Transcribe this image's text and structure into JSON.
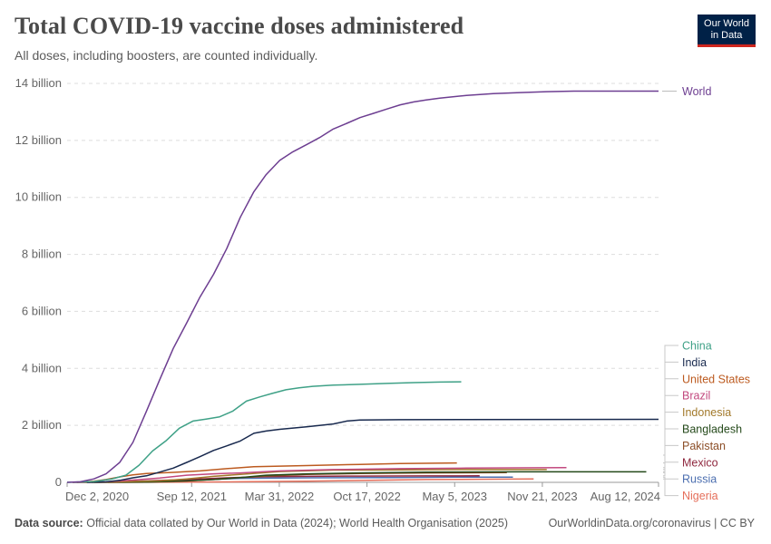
{
  "header": {
    "title": "Total COVID-19 vaccine doses administered",
    "subtitle": "All doses, including boosters, are counted individually.",
    "logo_line1": "Our World",
    "logo_line2": "in Data"
  },
  "footer": {
    "source_label": "Data source:",
    "source_text": "Official data collated by Our World in Data (2024); World Health Organisation (2025)",
    "link_text": "OurWorldinData.org/coronavirus",
    "separator": "|",
    "license": "CC BY"
  },
  "chart_data": {
    "type": "line",
    "title": "Total COVID-19 vaccine doses administered",
    "subtitle": "All doses, including boosters, are counted individually.",
    "y_unit": "billion",
    "ylim": [
      0,
      14
    ],
    "y_ticks": [
      {
        "value": 0,
        "label": "0"
      },
      {
        "value": 2,
        "label": "2 billion"
      },
      {
        "value": 4,
        "label": "4 billion"
      },
      {
        "value": 6,
        "label": "6 billion"
      },
      {
        "value": 8,
        "label": "8 billion"
      },
      {
        "value": 10,
        "label": "10 billion"
      },
      {
        "value": 12,
        "label": "12 billion"
      },
      {
        "value": 14,
        "label": "14 billion"
      }
    ],
    "xlim": [
      "2020-12-02",
      "2024-08-12"
    ],
    "x_ticks": [
      {
        "date": "2020-12-02",
        "label": "Dec 2, 2020"
      },
      {
        "date": "2021-09-12",
        "label": "Sep 12, 2021"
      },
      {
        "date": "2022-03-31",
        "label": "Mar 31, 2022"
      },
      {
        "date": "2022-10-17",
        "label": "Oct 17, 2022"
      },
      {
        "date": "2023-05-05",
        "label": "May 5, 2023"
      },
      {
        "date": "2023-11-21",
        "label": "Nov 21, 2023"
      },
      {
        "date": "2024-08-12",
        "label": "Aug 12, 2024"
      }
    ],
    "grid": "horizontal dashed",
    "legend": "right, line-end labels",
    "series": [
      {
        "name": "World",
        "color": "#6d3e91",
        "points": [
          [
            "2020-12-02",
            0
          ],
          [
            "2021-01-01",
            0.02
          ],
          [
            "2021-02-01",
            0.12
          ],
          [
            "2021-03-01",
            0.3
          ],
          [
            "2021-04-01",
            0.7
          ],
          [
            "2021-05-01",
            1.4
          ],
          [
            "2021-06-01",
            2.5
          ],
          [
            "2021-07-01",
            3.6
          ],
          [
            "2021-08-01",
            4.7
          ],
          [
            "2021-09-01",
            5.6
          ],
          [
            "2021-10-01",
            6.5
          ],
          [
            "2021-11-01",
            7.3
          ],
          [
            "2021-12-01",
            8.2
          ],
          [
            "2022-01-01",
            9.3
          ],
          [
            "2022-02-01",
            10.2
          ],
          [
            "2022-03-01",
            10.8
          ],
          [
            "2022-04-01",
            11.3
          ],
          [
            "2022-05-01",
            11.6
          ],
          [
            "2022-06-01",
            11.85
          ],
          [
            "2022-07-01",
            12.1
          ],
          [
            "2022-08-01",
            12.4
          ],
          [
            "2022-09-01",
            12.6
          ],
          [
            "2022-10-01",
            12.8
          ],
          [
            "2022-11-01",
            12.95
          ],
          [
            "2022-12-01",
            13.1
          ],
          [
            "2023-01-01",
            13.25
          ],
          [
            "2023-02-01",
            13.35
          ],
          [
            "2023-03-01",
            13.42
          ],
          [
            "2023-04-01",
            13.48
          ],
          [
            "2023-05-01",
            13.53
          ],
          [
            "2023-06-01",
            13.58
          ],
          [
            "2023-08-01",
            13.64
          ],
          [
            "2023-10-01",
            13.68
          ],
          [
            "2023-12-01",
            13.71
          ],
          [
            "2024-02-01",
            13.73
          ],
          [
            "2024-08-12",
            13.73
          ]
        ]
      },
      {
        "name": "China",
        "color": "#3fa187",
        "points": [
          [
            "2020-12-02",
            0
          ],
          [
            "2021-02-01",
            0.03
          ],
          [
            "2021-03-15",
            0.12
          ],
          [
            "2021-04-15",
            0.25
          ],
          [
            "2021-05-15",
            0.6
          ],
          [
            "2021-06-15",
            1.1
          ],
          [
            "2021-07-15",
            1.45
          ],
          [
            "2021-08-15",
            1.9
          ],
          [
            "2021-09-15",
            2.15
          ],
          [
            "2021-10-15",
            2.22
          ],
          [
            "2021-11-15",
            2.3
          ],
          [
            "2021-12-15",
            2.5
          ],
          [
            "2022-01-15",
            2.85
          ],
          [
            "2022-02-15",
            3.0
          ],
          [
            "2022-03-15",
            3.12
          ],
          [
            "2022-04-15",
            3.25
          ],
          [
            "2022-05-15",
            3.32
          ],
          [
            "2022-06-15",
            3.37
          ],
          [
            "2022-08-01",
            3.41
          ],
          [
            "2022-10-01",
            3.44
          ],
          [
            "2022-12-01",
            3.47
          ],
          [
            "2023-02-01",
            3.5
          ],
          [
            "2023-04-01",
            3.52
          ],
          [
            "2023-05-20",
            3.53
          ]
        ]
      },
      {
        "name": "India",
        "color": "#18294e",
        "points": [
          [
            "2021-01-16",
            0
          ],
          [
            "2021-03-01",
            0.02
          ],
          [
            "2021-04-01",
            0.07
          ],
          [
            "2021-05-01",
            0.16
          ],
          [
            "2021-06-01",
            0.23
          ],
          [
            "2021-07-01",
            0.36
          ],
          [
            "2021-08-01",
            0.5
          ],
          [
            "2021-09-01",
            0.7
          ],
          [
            "2021-10-01",
            0.9
          ],
          [
            "2021-11-01",
            1.12
          ],
          [
            "2021-12-01",
            1.28
          ],
          [
            "2022-01-01",
            1.45
          ],
          [
            "2022-02-01",
            1.72
          ],
          [
            "2022-03-01",
            1.8
          ],
          [
            "2022-04-01",
            1.86
          ],
          [
            "2022-06-01",
            1.95
          ],
          [
            "2022-08-01",
            2.05
          ],
          [
            "2022-09-01",
            2.15
          ],
          [
            "2022-10-01",
            2.19
          ],
          [
            "2023-01-01",
            2.2
          ],
          [
            "2024-08-12",
            2.21
          ]
        ]
      },
      {
        "name": "United States",
        "color": "#bc5a1f",
        "points": [
          [
            "2020-12-14",
            0
          ],
          [
            "2021-01-01",
            0.005
          ],
          [
            "2021-02-01",
            0.04
          ],
          [
            "2021-03-01",
            0.1
          ],
          [
            "2021-04-01",
            0.19
          ],
          [
            "2021-05-01",
            0.26
          ],
          [
            "2021-06-01",
            0.31
          ],
          [
            "2021-08-01",
            0.35
          ],
          [
            "2021-10-01",
            0.4
          ],
          [
            "2021-12-01",
            0.48
          ],
          [
            "2022-02-01",
            0.55
          ],
          [
            "2022-06-01",
            0.59
          ],
          [
            "2022-10-01",
            0.63
          ],
          [
            "2023-01-01",
            0.66
          ],
          [
            "2023-05-10",
            0.68
          ]
        ]
      },
      {
        "name": "Brazil",
        "color": "#c2487e",
        "points": [
          [
            "2021-01-17",
            0
          ],
          [
            "2021-03-01",
            0.02
          ],
          [
            "2021-05-01",
            0.08
          ],
          [
            "2021-07-01",
            0.15
          ],
          [
            "2021-09-01",
            0.25
          ],
          [
            "2021-11-01",
            0.3
          ],
          [
            "2022-01-01",
            0.33
          ],
          [
            "2022-04-01",
            0.4
          ],
          [
            "2022-08-01",
            0.45
          ],
          [
            "2023-01-01",
            0.48
          ],
          [
            "2023-06-01",
            0.5
          ],
          [
            "2024-01-15",
            0.52
          ]
        ]
      },
      {
        "name": "Indonesia",
        "color": "#a2792b",
        "points": [
          [
            "2021-01-13",
            0
          ],
          [
            "2021-04-01",
            0.02
          ],
          [
            "2021-07-01",
            0.05
          ],
          [
            "2021-09-01",
            0.12
          ],
          [
            "2021-11-01",
            0.21
          ],
          [
            "2022-01-01",
            0.28
          ],
          [
            "2022-04-01",
            0.38
          ],
          [
            "2022-08-01",
            0.43
          ],
          [
            "2023-01-01",
            0.44
          ],
          [
            "2023-06-01",
            0.45
          ],
          [
            "2023-12-01",
            0.45
          ]
        ]
      },
      {
        "name": "Bangladesh",
        "color": "#24491a",
        "points": [
          [
            "2021-01-27",
            0
          ],
          [
            "2021-06-01",
            0.01
          ],
          [
            "2021-09-01",
            0.05
          ],
          [
            "2021-11-01",
            0.1
          ],
          [
            "2022-01-01",
            0.17
          ],
          [
            "2022-03-01",
            0.25
          ],
          [
            "2022-06-01",
            0.3
          ],
          [
            "2022-10-01",
            0.33
          ],
          [
            "2023-03-01",
            0.36
          ],
          [
            "2023-10-01",
            0.37
          ],
          [
            "2024-07-15",
            0.37
          ]
        ]
      },
      {
        "name": "Pakistan",
        "color": "#8c4e27",
        "points": [
          [
            "2021-02-02",
            0
          ],
          [
            "2021-06-01",
            0.01
          ],
          [
            "2021-09-01",
            0.05
          ],
          [
            "2021-11-01",
            0.1
          ],
          [
            "2022-01-01",
            0.17
          ],
          [
            "2022-03-01",
            0.22
          ],
          [
            "2022-06-01",
            0.28
          ],
          [
            "2022-10-01",
            0.31
          ],
          [
            "2023-03-01",
            0.33
          ],
          [
            "2023-09-01",
            0.34
          ]
        ]
      },
      {
        "name": "Mexico",
        "color": "#8f283f",
        "points": [
          [
            "2020-12-24",
            0
          ],
          [
            "2021-03-01",
            0.01
          ],
          [
            "2021-06-01",
            0.05
          ],
          [
            "2021-09-01",
            0.1
          ],
          [
            "2021-12-01",
            0.16
          ],
          [
            "2022-03-01",
            0.2
          ],
          [
            "2022-06-01",
            0.21
          ],
          [
            "2022-10-01",
            0.22
          ],
          [
            "2023-03-01",
            0.225
          ],
          [
            "2023-07-01",
            0.23
          ]
        ]
      },
      {
        "name": "Russia",
        "color": "#4c6fb0",
        "points": [
          [
            "2020-12-15",
            0
          ],
          [
            "2021-04-01",
            0.01
          ],
          [
            "2021-07-01",
            0.05
          ],
          [
            "2021-10-01",
            0.09
          ],
          [
            "2022-01-01",
            0.14
          ],
          [
            "2022-06-01",
            0.16
          ],
          [
            "2022-12-01",
            0.17
          ],
          [
            "2023-05-01",
            0.18
          ],
          [
            "2023-09-15",
            0.185
          ]
        ]
      },
      {
        "name": "Nigeria",
        "color": "#e56e5a",
        "points": [
          [
            "2021-03-05",
            0
          ],
          [
            "2021-09-01",
            0.005
          ],
          [
            "2022-01-01",
            0.02
          ],
          [
            "2022-06-01",
            0.04
          ],
          [
            "2022-12-01",
            0.08
          ],
          [
            "2023-03-01",
            0.1
          ],
          [
            "2023-08-01",
            0.11
          ],
          [
            "2023-11-01",
            0.12
          ]
        ]
      }
    ]
  }
}
